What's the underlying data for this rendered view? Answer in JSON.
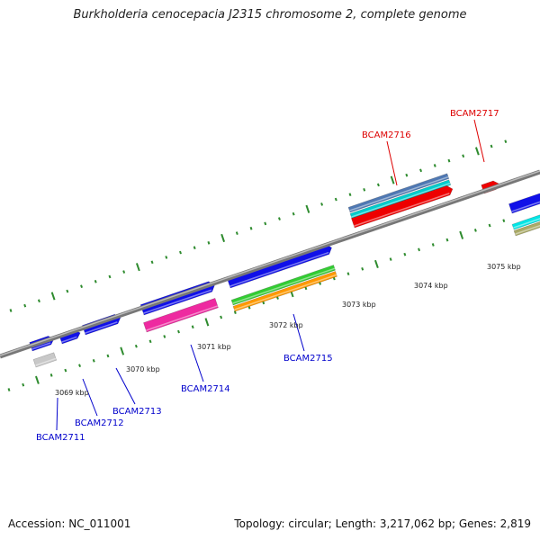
{
  "title": "Burkholderia cenocepacia J2315 chromosome 2, complete genome",
  "footer": {
    "accession": "Accession: NC_011001",
    "summary": "Topology: circular; Length: 3,217,062 bp; Genes: 2,819"
  },
  "colors": {
    "backbone": "#8a8a8a",
    "tick": "#2e8b2e",
    "forward_label": "#0000cc",
    "reverse_label": "#dd0000"
  },
  "scale_labels": [
    "3069 kbp",
    "3070 kbp",
    "3071 kbp",
    "3072 kbp",
    "3073 kbp",
    "3074 kbp",
    "3075 kbp"
  ],
  "genes": [
    {
      "name": "BCAM2711",
      "color": "#0000cc"
    },
    {
      "name": "BCAM2712",
      "color": "#0000cc"
    },
    {
      "name": "BCAM2713",
      "color": "#0000cc"
    },
    {
      "name": "BCAM2714",
      "color": "#0000cc"
    },
    {
      "name": "BCAM2715",
      "color": "#0000cc"
    },
    {
      "name": "BCAM2716",
      "color": "#dd0000"
    },
    {
      "name": "BCAM2717",
      "color": "#dd0000"
    }
  ]
}
